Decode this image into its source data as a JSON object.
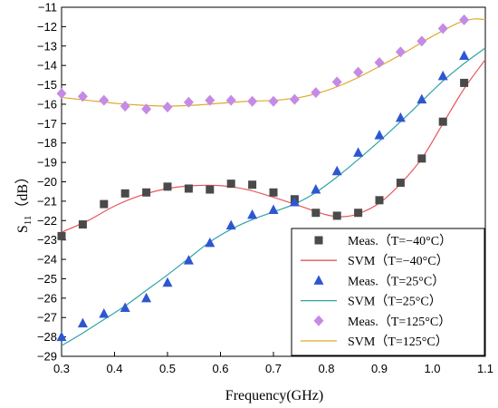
{
  "chart_data": {
    "type": "scatter",
    "xlabel": "Frequency(GHz)",
    "ylabel_main": "S",
    "ylabel_sub": "11",
    "ylabel_unit": "（dB）",
    "xlim": [
      0.3,
      1.1
    ],
    "ylim": [
      -29,
      -11
    ],
    "x_ticks": [
      0.3,
      0.4,
      0.5,
      0.6,
      0.7,
      0.8,
      0.9,
      1.0,
      1.1
    ],
    "x_tick_labels": [
      "0.3",
      "0.4",
      "0.5",
      "0.6",
      "0.7",
      "0.8",
      "0.9",
      "1.0",
      "1.1"
    ],
    "y_ticks": [
      -29,
      -28,
      -27,
      -26,
      -25,
      -24,
      -23,
      -22,
      -21,
      -20,
      -19,
      -18,
      -17,
      -16,
      -15,
      -14,
      -13,
      -12,
      -11
    ],
    "y_tick_labels": [
      "−29",
      "−28",
      "−27",
      "−26",
      "−25",
      "−24",
      "−23",
      "−22",
      "−21",
      "−20",
      "−19",
      "−18",
      "−17",
      "−16",
      "−15",
      "−14",
      "−13",
      "−12",
      "−11"
    ],
    "grid": false,
    "legend_position": "bottom-right",
    "series": [
      {
        "name": "Meas.（T=−40°C）",
        "kind": "markers",
        "marker": "square",
        "color": "#4a4a4a",
        "x": [
          0.3,
          0.34,
          0.38,
          0.42,
          0.46,
          0.5,
          0.54,
          0.58,
          0.62,
          0.66,
          0.7,
          0.74,
          0.78,
          0.82,
          0.86,
          0.9,
          0.94,
          0.98,
          1.02,
          1.06
        ],
        "y": [
          -22.8,
          -22.2,
          -21.15,
          -20.6,
          -20.55,
          -20.25,
          -20.35,
          -20.4,
          -20.1,
          -20.15,
          -20.55,
          -20.9,
          -21.6,
          -21.75,
          -21.6,
          -20.95,
          -20.05,
          -18.8,
          -16.9,
          -14.9
        ]
      },
      {
        "name": "SVM（T=−40°C）",
        "kind": "line",
        "color": "#e8555a",
        "x": [
          0.3,
          0.35,
          0.4,
          0.45,
          0.5,
          0.55,
          0.6,
          0.65,
          0.7,
          0.75,
          0.8,
          0.83,
          0.86,
          0.9,
          0.94,
          0.98,
          1.02,
          1.06,
          1.1
        ],
        "y": [
          -22.6,
          -22.0,
          -21.25,
          -20.7,
          -20.35,
          -20.2,
          -20.2,
          -20.4,
          -20.8,
          -21.25,
          -21.7,
          -21.8,
          -21.65,
          -21.1,
          -20.1,
          -18.8,
          -17.0,
          -15.2,
          -13.7
        ]
      },
      {
        "name": "Meas.（T=25°C）",
        "kind": "markers",
        "marker": "triangle",
        "color": "#2f56d1",
        "x": [
          0.3,
          0.34,
          0.38,
          0.42,
          0.46,
          0.5,
          0.54,
          0.58,
          0.62,
          0.66,
          0.7,
          0.74,
          0.78,
          0.82,
          0.86,
          0.9,
          0.94,
          0.98,
          1.02,
          1.06
        ],
        "y": [
          -28.0,
          -27.3,
          -26.8,
          -26.5,
          -26.0,
          -25.2,
          -24.05,
          -23.15,
          -22.25,
          -21.7,
          -21.45,
          -21.05,
          -20.4,
          -19.45,
          -18.5,
          -17.6,
          -16.7,
          -15.75,
          -14.55,
          -13.5
        ]
      },
      {
        "name": "SVM（T=25°C）",
        "kind": "line",
        "color": "#2ea3a8",
        "x": [
          0.3,
          0.34,
          0.38,
          0.42,
          0.46,
          0.5,
          0.54,
          0.58,
          0.62,
          0.66,
          0.7,
          0.74,
          0.78,
          0.82,
          0.86,
          0.9,
          0.94,
          0.98,
          1.02,
          1.06,
          1.1
        ],
        "y": [
          -28.45,
          -27.8,
          -27.1,
          -26.4,
          -25.6,
          -24.8,
          -23.95,
          -23.1,
          -22.45,
          -21.95,
          -21.55,
          -21.15,
          -20.55,
          -19.75,
          -18.85,
          -17.9,
          -16.9,
          -15.85,
          -14.8,
          -13.9,
          -13.1
        ]
      },
      {
        "name": "Meas.（T=125°C）",
        "kind": "markers",
        "marker": "diamond",
        "color": "#c58ae6",
        "x": [
          0.3,
          0.34,
          0.38,
          0.42,
          0.46,
          0.5,
          0.54,
          0.58,
          0.62,
          0.66,
          0.7,
          0.74,
          0.78,
          0.82,
          0.86,
          0.9,
          0.94,
          0.98,
          1.02,
          1.06
        ],
        "y": [
          -15.45,
          -15.6,
          -15.8,
          -16.1,
          -16.25,
          -16.15,
          -15.9,
          -15.8,
          -15.8,
          -15.85,
          -15.85,
          -15.75,
          -15.4,
          -14.85,
          -14.35,
          -13.85,
          -13.3,
          -12.75,
          -12.1,
          -11.65
        ]
      },
      {
        "name": "SVM（T=125°C）",
        "kind": "line",
        "color": "#e0a92e",
        "x": [
          0.3,
          0.35,
          0.4,
          0.45,
          0.5,
          0.55,
          0.6,
          0.65,
          0.7,
          0.75,
          0.8,
          0.85,
          0.9,
          0.95,
          1.0,
          1.05,
          1.08,
          1.1
        ],
        "y": [
          -15.65,
          -15.8,
          -15.95,
          -16.05,
          -16.1,
          -16.05,
          -15.95,
          -15.85,
          -15.8,
          -15.65,
          -15.3,
          -14.75,
          -14.05,
          -13.3,
          -12.5,
          -11.8,
          -11.6,
          -11.65
        ]
      }
    ]
  }
}
